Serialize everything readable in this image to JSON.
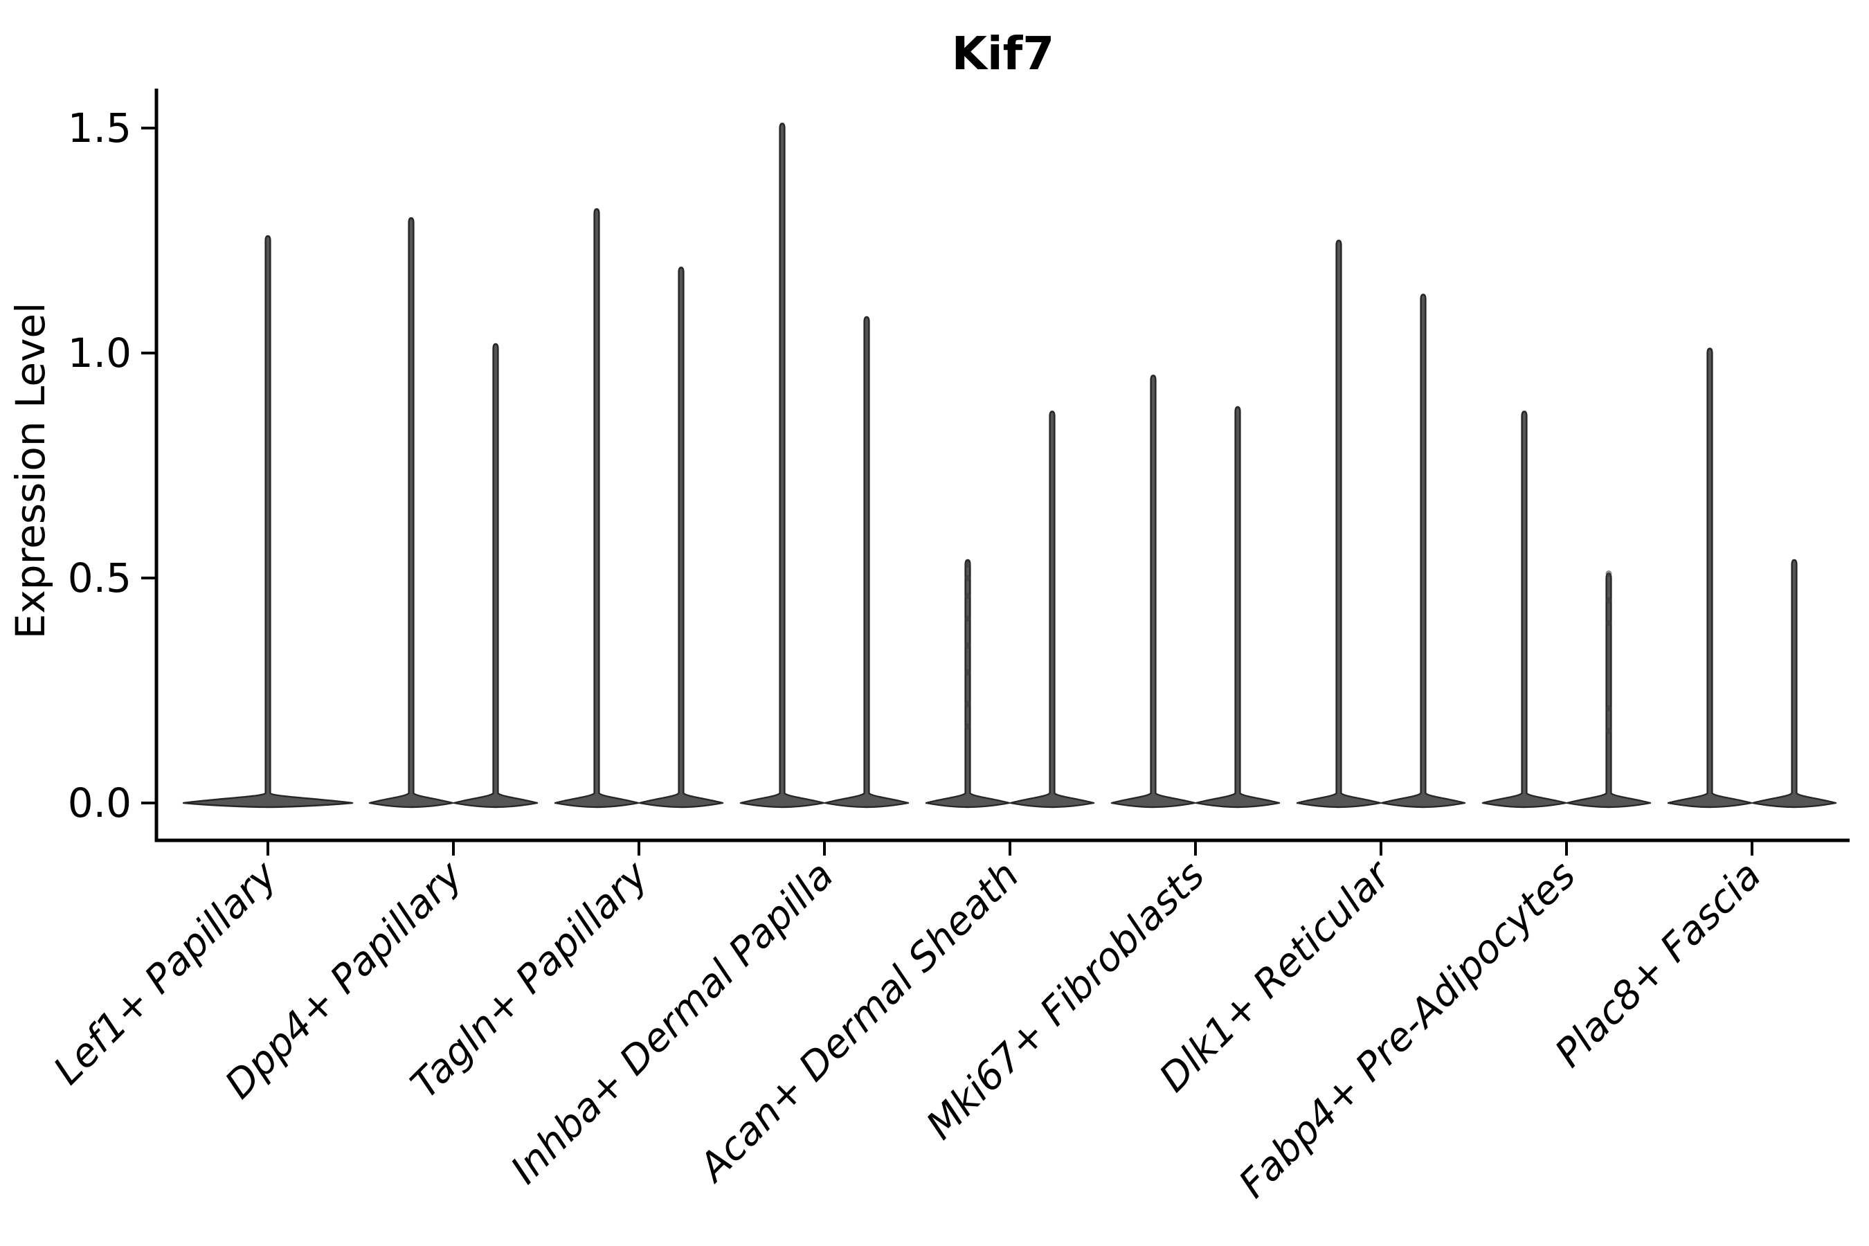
{
  "figure": {
    "background": "#ffffff"
  },
  "chart_data": {
    "type": "violin",
    "title": "Kif7",
    "xlabel": "",
    "ylabel": "Expression Level",
    "ylim": [
      -0.08,
      1.6
    ],
    "grid": false,
    "legend": "none",
    "yticks": [
      0.0,
      0.5,
      1.0,
      1.5
    ],
    "ytick_labels": [
      "0.0",
      "0.5",
      "1.0",
      "1.5"
    ],
    "categories": [
      "Lef1+ Papillary",
      "Dpp4+ Papillary",
      "Tagln+ Papillary",
      "Inhba+ Dermal Papilla",
      "Acan+ Dermal Sheath",
      "Mki67+ Fibroblasts",
      "Dlk1+ Reticular",
      "Fabp4+ Pre-Adipocytes",
      "Plac8+ Fascia"
    ],
    "violins": [
      {
        "category": "Lef1+ Papillary",
        "min": 0,
        "maxima": [
          1.26
        ]
      },
      {
        "category": "Dpp4+ Papillary",
        "min": 0,
        "maxima": [
          1.3,
          1.02
        ]
      },
      {
        "category": "Tagln+ Papillary",
        "min": 0,
        "maxima": [
          1.32,
          1.19
        ]
      },
      {
        "category": "Inhba+ Dermal Papilla",
        "min": 0,
        "maxima": [
          1.51,
          1.08
        ]
      },
      {
        "category": "Acan+ Dermal Sheath",
        "min": 0,
        "maxima": [
          0.54,
          0.87
        ]
      },
      {
        "category": "Mki67+ Fibroblasts",
        "min": 0,
        "maxima": [
          0.95,
          0.88
        ]
      },
      {
        "category": "Dlk1+ Reticular",
        "min": 0,
        "maxima": [
          1.25,
          1.13
        ]
      },
      {
        "category": "Fabp4+ Pre-Adipocytes",
        "min": 0,
        "maxima": [
          0.87,
          0.51
        ]
      },
      {
        "category": "Plac8+ Fascia",
        "min": 0,
        "maxima": [
          1.01,
          0.54
        ]
      }
    ],
    "overlay_points": [
      {
        "category_index": 4,
        "violin_index": 0,
        "values": [
          0.53,
          0.5,
          0.46,
          0.41,
          0.35,
          0.29,
          0.22,
          0.17
        ]
      },
      {
        "category_index": 7,
        "violin_index": 1,
        "values": [
          0.51,
          0.45,
          0.4,
          0.21,
          0.16
        ]
      }
    ],
    "style": {
      "violin_fill": "#555555",
      "violin_stroke": "#262626",
      "axis_color": "#000000",
      "text_color": "#000000",
      "point_color": "#3a3a3a",
      "xtick_label_style": "italic",
      "xtick_rotation_deg": 45
    }
  }
}
